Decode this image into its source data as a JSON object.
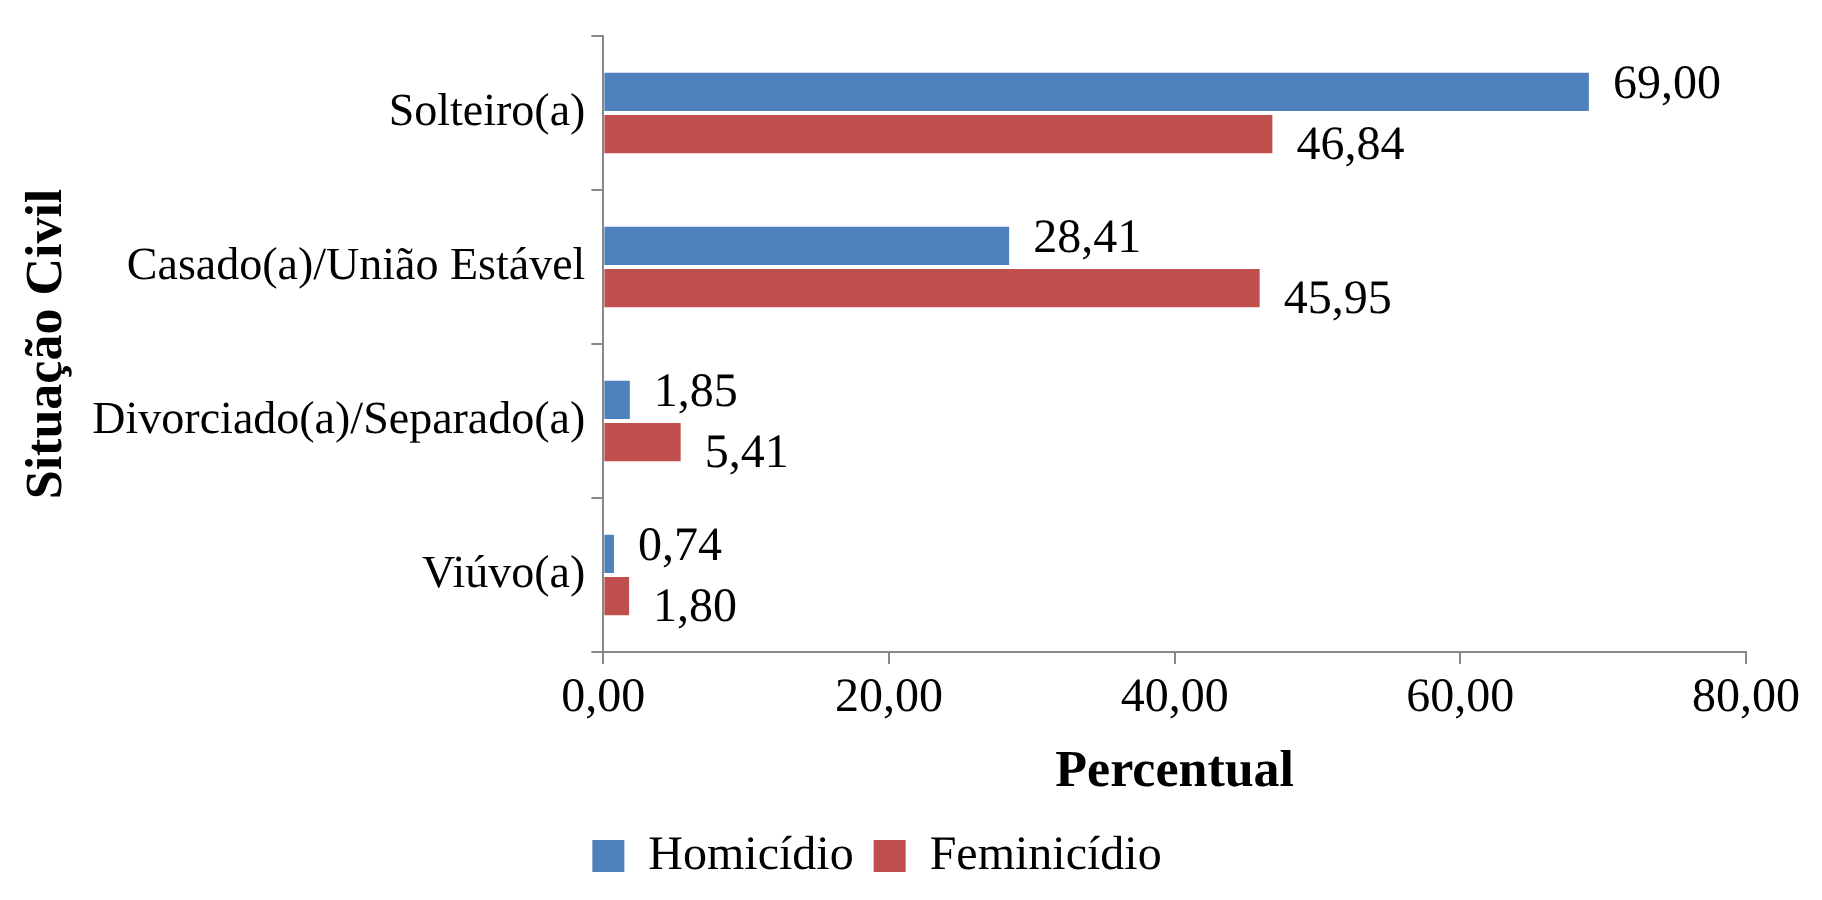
{
  "chart_data": {
    "type": "bar",
    "orientation": "horizontal",
    "xlabel": "Percentual",
    "ylabel": "Situação Civil",
    "categories": [
      "Solteiro(a)",
      "Casado(a)/União Estável",
      "Divorciado(a)/Separado(a)",
      "Viúvo(a)"
    ],
    "series": [
      {
        "name": "Homicídio",
        "color": "#4f81bd",
        "values": [
          69.0,
          28.41,
          1.85,
          0.74
        ],
        "value_labels": [
          "69,00",
          "28,41",
          "1,85",
          "0,74"
        ]
      },
      {
        "name": "Feminicídio",
        "color": "#c0504d",
        "values": [
          46.84,
          45.95,
          5.41,
          1.8
        ],
        "value_labels": [
          "46,84",
          "45,95",
          "5,41",
          "1,80"
        ]
      }
    ],
    "xlim": [
      0,
      80
    ],
    "xticks": [
      {
        "value": 0,
        "label": "0,00"
      },
      {
        "value": 20,
        "label": "20,00"
      },
      {
        "value": 40,
        "label": "40,00"
      },
      {
        "value": 60,
        "label": "60,00"
      },
      {
        "value": 80,
        "label": "80,00"
      }
    ],
    "grid": false,
    "legend": "bottom"
  }
}
